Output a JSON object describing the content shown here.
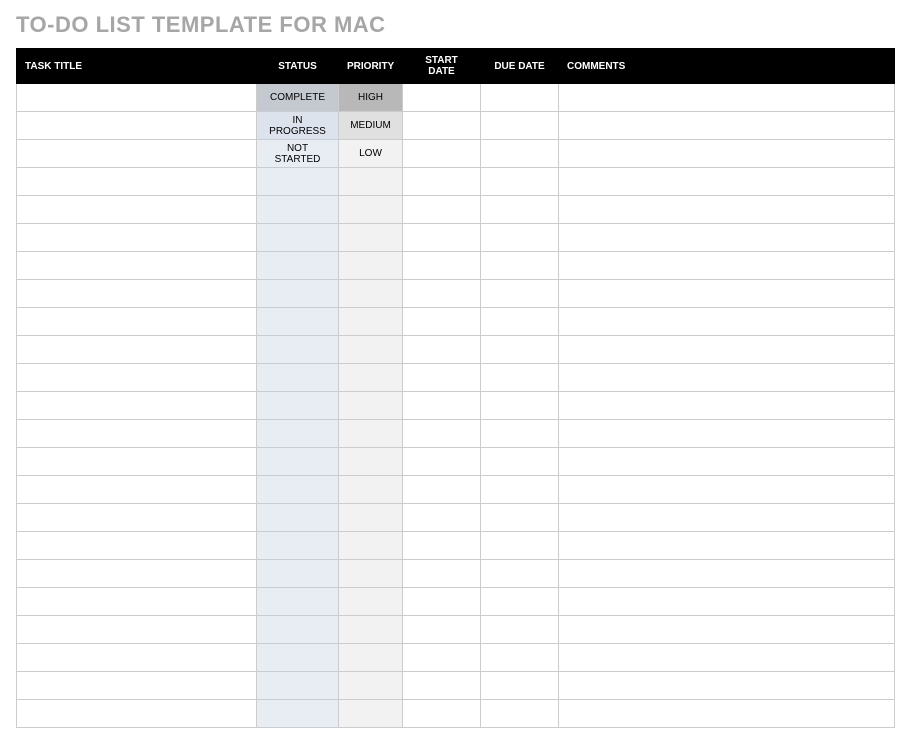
{
  "title": "TO-DO LIST TEMPLATE FOR MAC",
  "columns": {
    "task": "TASK TITLE",
    "status": "STATUS",
    "priority": "PRIORITY",
    "start": "START DATE",
    "due": "DUE DATE",
    "comments": "COMMENTS"
  },
  "status_options": [
    "COMPLETE",
    "IN PROGRESS",
    "NOT STARTED"
  ],
  "priority_options": [
    "HIGH",
    "MEDIUM",
    "LOW"
  ],
  "row_count": 23,
  "colors": {
    "title_color": "#a6a6a6",
    "header_bg": "#000000",
    "header_text": "#ffffff",
    "border": "#cccccc",
    "status_col_bg": "#e8edf4",
    "priority_col_bg": "#f2f2f2",
    "status_filled_bg": "#c4c9d0",
    "priority_filled_bg": "#b8b8b8",
    "status_filled2_bg": "#dde3ec",
    "priority_filled2_bg": "#e0e0e0"
  },
  "column_widths": {
    "task": 240,
    "status": 82,
    "priority": 64,
    "start": 78,
    "due": 78
  }
}
